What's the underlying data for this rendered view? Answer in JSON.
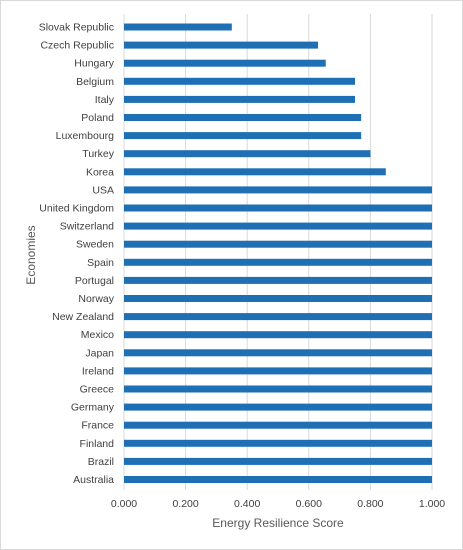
{
  "chart_data": {
    "type": "bar",
    "orientation": "horizontal",
    "title": "",
    "xlabel": "Energy Resilience Score",
    "ylabel": "Economies",
    "xlim": [
      0,
      1
    ],
    "xticks": [
      "0.000",
      "0.200",
      "0.400",
      "0.600",
      "0.800",
      "1.000"
    ],
    "grid": "vertical",
    "bar_color": "#1f6fb5",
    "categories": [
      "Slovak Republic",
      "Czech Republic",
      "Hungary",
      "Belgium",
      "Italy",
      "Poland",
      "Luxembourg",
      "Turkey",
      "Korea",
      "USA",
      "United Kingdom",
      "Switzerland",
      "Sweden",
      "Spain",
      "Portugal",
      "Norway",
      "New Zealand",
      "Mexico",
      "Japan",
      "Ireland",
      "Greece",
      "Germany",
      "France",
      "Finland",
      "Brazil",
      "Australia"
    ],
    "values": [
      0.35,
      0.63,
      0.655,
      0.75,
      0.75,
      0.77,
      0.77,
      0.8,
      0.85,
      1.0,
      1.0,
      1.0,
      1.0,
      1.0,
      1.0,
      1.0,
      1.0,
      1.0,
      1.0,
      1.0,
      1.0,
      1.0,
      1.0,
      1.0,
      1.0,
      1.0
    ]
  }
}
